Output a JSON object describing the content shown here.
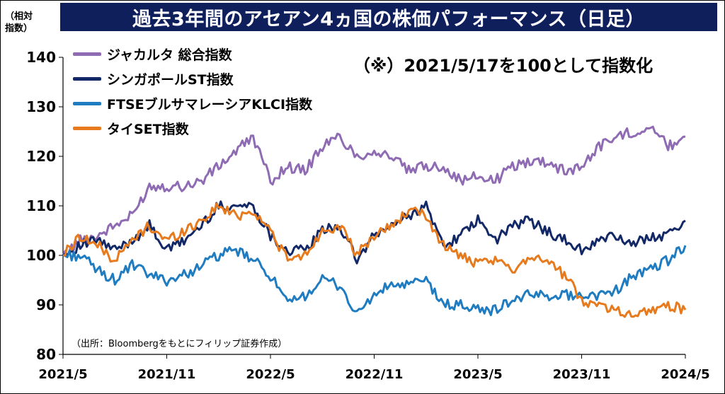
{
  "title": "過去3年間のアセアン4ヵ国の株価パフォーマンス（日足）",
  "y_unit_label": [
    "（相対",
    "指数）"
  ],
  "note": "（※）2021/5/17を100として指数化",
  "source": "（出所：Bloombergをもとにフィリップ証券作成）",
  "colors": {
    "title_bg": "#0f1f5c",
    "jakarta": "#8e6bb3",
    "singapore": "#132866",
    "ftse_klci": "#1f7cc1",
    "set": "#e67a1c"
  },
  "chart_data": {
    "type": "line",
    "title": "過去3年間のアセアン4ヵ国の株価パフォーマンス（日足）",
    "xlabel": "",
    "ylabel": "（相対指数）",
    "ylim": [
      80,
      140
    ],
    "yticks": [
      "80",
      "90",
      "100",
      "110",
      "120",
      "130",
      "140"
    ],
    "xticks": [
      "2021/5",
      "2021/11",
      "2022/5",
      "2022/11",
      "2023/5",
      "2023/11",
      "2024/5"
    ],
    "x": [
      "2021/5",
      "2021/6",
      "2021/7",
      "2021/8",
      "2021/9",
      "2021/10",
      "2021/11",
      "2021/12",
      "2022/1",
      "2022/2",
      "2022/3",
      "2022/4",
      "2022/5",
      "2022/6",
      "2022/7",
      "2022/8",
      "2022/9",
      "2022/10",
      "2022/11",
      "2022/12",
      "2023/1",
      "2023/2",
      "2023/3",
      "2023/4",
      "2023/5",
      "2023/6",
      "2023/7",
      "2023/8",
      "2023/9",
      "2023/10",
      "2023/11",
      "2023/12",
      "2024/1",
      "2024/2",
      "2024/3",
      "2024/4",
      "2024/5"
    ],
    "series": [
      {
        "name": "ジャカルタ 総合指数",
        "color": "#8e6bb3",
        "values": [
          100,
          103,
          104,
          106,
          108,
          114,
          114,
          114,
          115,
          118,
          121,
          124,
          115,
          118,
          117,
          122,
          124,
          120,
          121,
          120,
          117,
          118,
          118,
          115,
          116,
          115,
          118,
          119,
          119,
          117,
          118,
          122,
          124,
          125,
          126,
          122,
          124
        ]
      },
      {
        "name": "シンガポールST指数",
        "color": "#132866",
        "values": [
          100,
          102,
          103,
          101,
          103,
          106,
          101,
          103,
          106,
          110,
          110,
          110,
          104,
          101,
          101,
          105,
          106,
          99,
          104,
          106,
          108,
          110,
          102,
          104,
          107,
          103,
          106,
          107,
          105,
          103,
          101,
          103,
          104,
          102,
          104,
          104,
          107
        ]
      },
      {
        "name": "FTSEブルサマレーシアKLCI指数",
        "color": "#1f7cc1",
        "values": [
          100,
          100,
          97,
          95,
          98,
          96,
          95,
          96,
          98,
          100,
          101,
          99,
          96,
          90,
          92,
          95,
          94,
          88,
          92,
          94,
          94,
          95,
          90,
          90,
          89,
          89,
          91,
          92,
          92,
          92,
          92,
          92,
          93,
          96,
          97,
          99,
          102
        ]
      },
      {
        "name": "タイSET指数",
        "color": "#e67a1c",
        "values": [
          100,
          104,
          102,
          99,
          103,
          106,
          103,
          105,
          107,
          110,
          108,
          109,
          105,
          99,
          100,
          105,
          106,
          100,
          104,
          106,
          109,
          108,
          102,
          100,
          98,
          99,
          97,
          100,
          99,
          96,
          91,
          90,
          89,
          88,
          89,
          90,
          89
        ]
      }
    ]
  }
}
